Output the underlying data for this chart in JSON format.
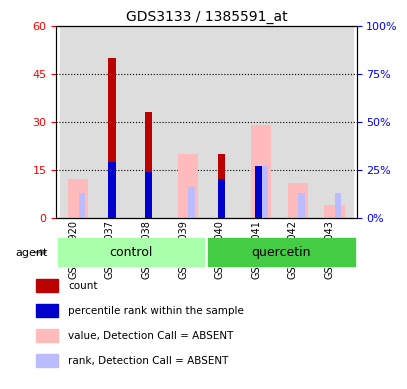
{
  "title": "GDS3133 / 1385591_at",
  "samples": [
    "GSM180920",
    "GSM181037",
    "GSM181038",
    "GSM181039",
    "GSM181040",
    "GSM181041",
    "GSM181042",
    "GSM181043"
  ],
  "groups": [
    "control",
    "control",
    "control",
    "control",
    "quercetin",
    "quercetin",
    "quercetin",
    "quercetin"
  ],
  "count_values": [
    0,
    50,
    33,
    0,
    20,
    0,
    0,
    0
  ],
  "rank_values": [
    0,
    29,
    24,
    0,
    20,
    27,
    0,
    0
  ],
  "absent_value_values": [
    12,
    0,
    0,
    20,
    0,
    29,
    11,
    4
  ],
  "absent_rank_values": [
    13,
    0,
    0,
    16,
    0,
    27,
    13,
    13
  ],
  "count_color": "#bb0000",
  "rank_color": "#0000cc",
  "absent_value_color": "#ffbbbb",
  "absent_rank_color": "#bbbbff",
  "ylim_left": [
    0,
    60
  ],
  "ylim_right": [
    0,
    100
  ],
  "yticks_left": [
    0,
    15,
    30,
    45,
    60
  ],
  "ytick_labels_left": [
    "0",
    "15",
    "30",
    "45",
    "60"
  ],
  "ytick_labels_right": [
    "0%",
    "25%",
    "50%",
    "75%",
    "100%"
  ],
  "bar_width": 0.35,
  "group_labels": [
    "control",
    "quercetin"
  ],
  "group_colors": [
    "#aaffaa",
    "#00cc44"
  ],
  "agent_label": "agent",
  "background_color": "#dddddd"
}
